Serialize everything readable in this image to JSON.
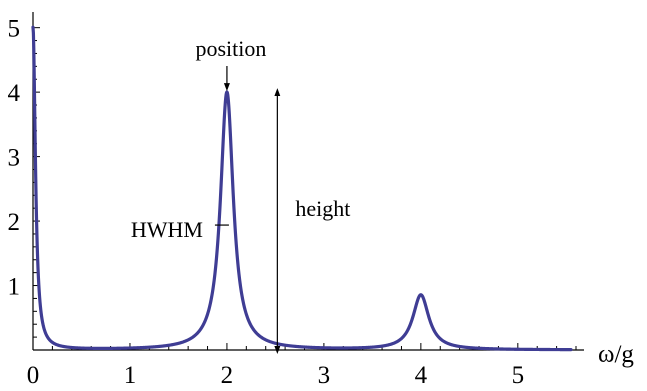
{
  "chart_data": {
    "type": "line",
    "xlabel": "ω/g",
    "ylabel": "",
    "xlim": [
      0,
      5.6
    ],
    "ylim": [
      0,
      5.15
    ],
    "x_ticks": [
      0,
      1,
      2,
      3,
      4,
      5
    ],
    "y_ticks": [
      1,
      2,
      3,
      4,
      5
    ],
    "x_tick_labels": [
      "0",
      "1",
      "2",
      "3",
      "4",
      "5"
    ],
    "y_tick_labels": [
      "1",
      "2",
      "3",
      "4",
      "5"
    ],
    "grid": false,
    "line_color": "#3f3d94",
    "series": [
      {
        "peaks": [
          {
            "x": 0,
            "height": 5.0,
            "hwhm": 0.03
          },
          {
            "x": 2,
            "height": 4.0,
            "hwhm": 0.08
          },
          {
            "x": 4,
            "height": 0.85,
            "hwhm": 0.1
          }
        ]
      }
    ],
    "annotations": {
      "position": {
        "text": "position",
        "x": 2,
        "y": 4.0
      },
      "height": {
        "text": "height",
        "x": 2.52,
        "y_top": 4.0,
        "y_bottom": 0
      },
      "hwhm": {
        "text": "HWHM",
        "x": 2,
        "y": 2.0
      }
    }
  }
}
